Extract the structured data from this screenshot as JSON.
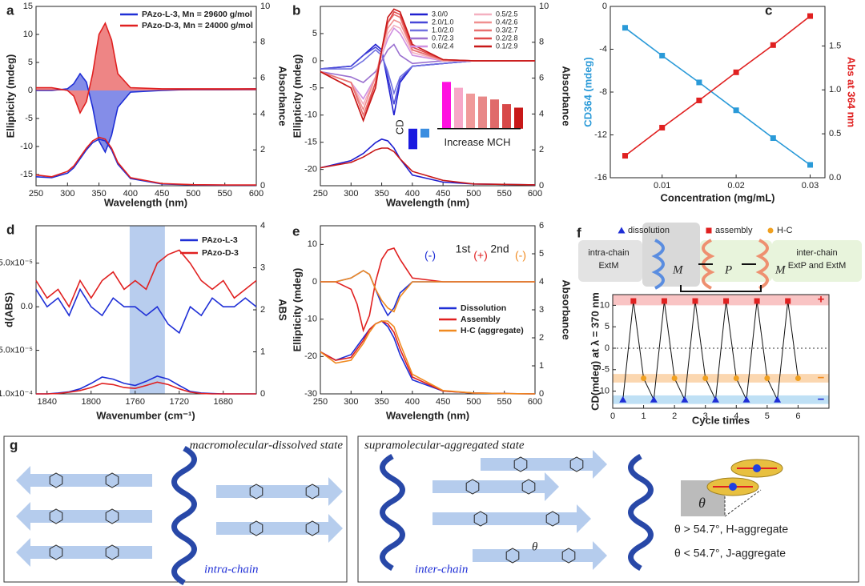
{
  "chart_data": [
    {
      "type": "line",
      "panel_label": "a",
      "xlabel": "Wavelength (nm)",
      "ylabel": "Ellipticity (mdeg)",
      "y2label": "Absorbance",
      "xlim": [
        250,
        600
      ],
      "xticks": [
        250,
        300,
        350,
        400,
        450,
        500,
        550,
        600
      ],
      "ylim": [
        -17,
        15
      ],
      "yticks": [
        -15,
        -10,
        -5,
        0,
        5,
        10,
        15
      ],
      "y2lim": [
        0,
        10
      ],
      "y2ticks": [
        0,
        2,
        4,
        6,
        8,
        10
      ],
      "x": [
        250,
        275,
        300,
        310,
        320,
        330,
        340,
        350,
        360,
        370,
        380,
        400,
        450,
        500,
        550,
        600
      ],
      "series": [
        {
          "name": "PAzo-L-3, Mn = 29600 g/mol",
          "color": "#1f2fd6",
          "fill": true,
          "values": [
            0,
            0,
            0.3,
            1.2,
            3,
            1.5,
            -3,
            -9,
            -11,
            -8,
            -3,
            -0.3,
            0,
            0.2,
            0.2,
            0.3
          ]
        },
        {
          "name": "PAzo-D-3, Mn = 24000 g/mol",
          "color": "#e02020",
          "fill": true,
          "values": [
            0.5,
            0.5,
            0,
            -1,
            -4,
            -2,
            3,
            10,
            12,
            9,
            3,
            0.5,
            0.3,
            0.3,
            0.3,
            0.3
          ]
        },
        {
          "color": "#1f2fd6",
          "axis": "y2",
          "values": [
            0.5,
            0.45,
            0.7,
            1,
            1.5,
            2,
            2.4,
            2.6,
            2.5,
            2,
            1.2,
            0.4,
            0.1,
            0.05,
            0.03,
            0.03
          ]
        },
        {
          "color": "#e02020",
          "axis": "y2",
          "values": [
            0.6,
            0.5,
            0.8,
            1.1,
            1.6,
            2.1,
            2.5,
            2.7,
            2.6,
            2.1,
            1.3,
            0.45,
            0.12,
            0.06,
            0.04,
            0.04
          ]
        }
      ]
    },
    {
      "type": "line",
      "panel_label": "b",
      "xlabel": "Wavelength (nm)",
      "ylabel": "Ellipticity (mdeg)",
      "y2label": "Absorbance",
      "xlim": [
        250,
        600
      ],
      "xticks": [
        250,
        300,
        350,
        400,
        450,
        500,
        550,
        600
      ],
      "ylim": [
        -23,
        10
      ],
      "yticks": [
        -20,
        -15,
        -10,
        -5,
        0,
        5
      ],
      "y2lim": [
        0,
        10
      ],
      "y2ticks": [
        0,
        2,
        4,
        6,
        8,
        10
      ],
      "x": [
        250,
        300,
        320,
        340,
        350,
        360,
        370,
        380,
        400,
        450,
        500,
        600
      ],
      "series": [
        {
          "name": "3.0/0",
          "color": "#2020d0",
          "values": [
            -1.5,
            -1,
            1,
            3,
            2,
            -4,
            -10,
            -4,
            -1,
            -0.5,
            0,
            0
          ]
        },
        {
          "name": "2.0/1.0",
          "color": "#4848d8",
          "values": [
            -1.5,
            -1,
            1,
            2.5,
            1.5,
            -3,
            -8,
            -3.5,
            -1,
            -0.5,
            0,
            0
          ]
        },
        {
          "name": "1.0/2.0",
          "color": "#7070e0",
          "values": [
            -1.5,
            -1.5,
            0,
            2,
            1,
            -2,
            -6,
            -3,
            -1,
            -0.5,
            0,
            0
          ]
        },
        {
          "name": "0.7/2.3",
          "color": "#9a70d0",
          "values": [
            -2,
            -3,
            -4,
            -2,
            0,
            2,
            3,
            1,
            -0.5,
            0,
            0,
            0
          ]
        },
        {
          "name": "0.6/2.4",
          "color": "#d090e0",
          "values": [
            -2,
            -4,
            -7,
            -3,
            1,
            4,
            6,
            5,
            1,
            0,
            0,
            0
          ]
        },
        {
          "name": "0.5/2.5",
          "color": "#f4b0c0",
          "values": [
            -2,
            -4,
            -8,
            -3,
            1,
            5,
            6.5,
            6,
            1.5,
            0,
            0,
            0
          ]
        },
        {
          "name": "0.4/2.6",
          "color": "#f09090",
          "values": [
            -2,
            -4,
            -9,
            -3,
            2,
            6,
            7.5,
            7,
            2,
            0,
            0,
            0
          ]
        },
        {
          "name": "0.3/2.7",
          "color": "#e87070",
          "values": [
            -2,
            -4,
            -10,
            -4,
            2,
            7,
            8.5,
            8,
            2,
            0.2,
            0,
            0
          ]
        },
        {
          "name": "0.2/2.8",
          "color": "#e04848",
          "values": [
            -2,
            -5,
            -11,
            -4,
            2,
            7,
            9,
            8.5,
            2.5,
            0.2,
            0,
            0
          ]
        },
        {
          "name": "0.1/2.9",
          "color": "#c81818",
          "values": [
            -2,
            -5,
            -11,
            -5,
            2,
            8,
            9.5,
            9,
            3,
            0.2,
            0,
            0
          ]
        },
        {
          "color": "#2020d0",
          "axis": "y2",
          "values": [
            1.0,
            1.4,
            1.8,
            2.4,
            2.6,
            2.5,
            2.1,
            1.5,
            0.6,
            0.2,
            0.1,
            0.05
          ]
        },
        {
          "color": "#c81818",
          "axis": "y2",
          "values": [
            1.0,
            1.3,
            1.6,
            2.0,
            2.1,
            2.1,
            1.9,
            1.5,
            0.8,
            0.3,
            0.1,
            0.05
          ]
        }
      ],
      "inset": {
        "cd_label": "CD",
        "mch_label": "Increase MCH",
        "ylim": [
          -4,
          9
        ],
        "values": [
          -3.5,
          -1.5,
          8,
          7,
          6,
          5.5,
          5,
          4.2,
          3.6
        ],
        "colors": [
          "#1a1ae0",
          "#3a8de0",
          "#ff10e0",
          "#f7a8c8",
          "#f09a9a",
          "#e88888",
          "#e06a6a",
          "#d84848",
          "#c81818"
        ]
      }
    },
    {
      "type": "line",
      "panel_label": "c",
      "marker": "square",
      "xlabel": "Concentration (mg/mL)",
      "ylabel": "CD364 (mdeg)",
      "y2label": "Abs at 364 nm",
      "ylabel_color": "#2a9ad8",
      "y2label_color": "#e02020",
      "xlim": [
        0.003,
        0.032
      ],
      "xticks": [
        0.01,
        0.02,
        0.03
      ],
      "ylim": [
        -16,
        0
      ],
      "yticks": [
        -16,
        -12,
        -8,
        -4,
        0
      ],
      "y2lim": [
        0,
        1.95
      ],
      "y2ticks": [
        {
          "value": 0,
          "label": "0.0"
        },
        0.5,
        {
          "value": 1,
          "label": "1.0"
        },
        1.5
      ],
      "x": [
        0.005,
        0.01,
        0.015,
        0.02,
        0.025,
        0.03
      ],
      "series": [
        {
          "color": "#2a9ad8",
          "values": [
            -2,
            -4.6,
            -7.1,
            -9.7,
            -12.3,
            -14.8
          ]
        },
        {
          "color": "#e02020",
          "axis": "y2",
          "values": [
            0.25,
            0.57,
            0.88,
            1.2,
            1.51,
            1.84
          ]
        }
      ]
    },
    {
      "type": "line",
      "panel_label": "d",
      "xlabel": "Wavenumber (cm⁻¹)",
      "ylabel": "d(ABS)",
      "y2label": "ABS",
      "xlim": [
        1850,
        1650
      ],
      "xticks": [
        1840,
        1800,
        1760,
        1720,
        1680
      ],
      "ylim": [
        -0.0001,
        9.3e-05
      ],
      "yticks": [
        {
          "value": -0.0001,
          "label": "-1.0x10⁻⁴"
        },
        {
          "value": -5e-05,
          "label": "-5.0x10⁻⁵"
        },
        {
          "value": 0,
          "label": "0.0"
        },
        {
          "value": 5e-05,
          "label": "5.0x10⁻⁵"
        }
      ],
      "y2lim": [
        0,
        4
      ],
      "y2ticks": [
        0,
        1,
        2,
        3,
        4
      ],
      "highlight": [
        1765,
        1733
      ],
      "x": [
        1850,
        1840,
        1830,
        1820,
        1810,
        1800,
        1790,
        1780,
        1770,
        1760,
        1750,
        1740,
        1730,
        1720,
        1710,
        1700,
        1690,
        1680,
        1670,
        1660,
        1650
      ],
      "series": [
        {
          "name": "PAzo-L-3",
          "color": "#1f2fd6",
          "values": [
            2e-05,
            0,
            1e-05,
            -1e-05,
            2e-05,
            0,
            -1e-05,
            1e-05,
            0,
            0,
            -1e-05,
            0,
            -2e-05,
            -3e-05,
            0,
            -1e-05,
            1e-05,
            0,
            0,
            1e-05,
            0
          ]
        },
        {
          "name": "PAzo-D-3",
          "color": "#e02020",
          "values": [
            3e-05,
            1e-05,
            2e-05,
            0,
            3e-05,
            1e-05,
            3e-05,
            4e-05,
            2e-05,
            3e-05,
            2e-05,
            5e-05,
            6e-05,
            6.5e-05,
            5e-05,
            3e-05,
            2e-05,
            3e-05,
            1e-05,
            2e-05,
            3e-05
          ]
        },
        {
          "color": "#1f2fd6",
          "axis": "y2",
          "values": [
            0,
            0,
            0.02,
            0.05,
            0.12,
            0.25,
            0.4,
            0.35,
            0.25,
            0.2,
            0.3,
            0.42,
            0.35,
            0.2,
            0.06,
            0.02,
            0.01,
            0,
            0,
            0,
            0
          ]
        },
        {
          "color": "#e02020",
          "axis": "y2",
          "values": [
            0,
            0,
            0.01,
            0.04,
            0.08,
            0.15,
            0.25,
            0.22,
            0.15,
            0.13,
            0.2,
            0.28,
            0.22,
            0.12,
            0.04,
            0.01,
            0,
            0,
            0,
            0,
            0
          ]
        }
      ]
    },
    {
      "type": "line",
      "panel_label": "e",
      "xlabel": "Wavelength (nm)",
      "ylabel": "Ellipticity (mdeg)",
      "y2label": "Absorbance",
      "xlim": [
        250,
        600
      ],
      "xticks": [
        250,
        300,
        350,
        400,
        450,
        500,
        550,
        600
      ],
      "ylim": [
        -30,
        15
      ],
      "yticks": [
        -30,
        -20,
        -10,
        0,
        10
      ],
      "y2lim": [
        0,
        6
      ],
      "y2ticks": [
        0,
        1,
        2,
        3,
        4,
        5,
        6
      ],
      "x": [
        250,
        275,
        300,
        310,
        320,
        330,
        340,
        350,
        360,
        370,
        380,
        400,
        450,
        500,
        550,
        600
      ],
      "annotations": [
        {
          "text": "(-)",
          "color": "#1f2fd6"
        },
        {
          "text": "1st",
          "color": "#222"
        },
        {
          "text": "(+)",
          "color": "#e02020"
        },
        {
          "text": "2nd",
          "color": "#222"
        },
        {
          "text": "(-)",
          "color": "#f08a20"
        }
      ],
      "series": [
        {
          "name": "Dissolution",
          "color": "#1f2fd6",
          "values": [
            0,
            0,
            1,
            2,
            3,
            2,
            -2,
            -6,
            -9,
            -7,
            -3,
            0,
            0,
            0,
            0,
            0
          ]
        },
        {
          "name": "Assembly",
          "color": "#e02020",
          "values": [
            0,
            0,
            -2,
            -6,
            -13,
            -9,
            0,
            6,
            8.5,
            9,
            6,
            1,
            0,
            0,
            0,
            0
          ]
        },
        {
          "name": "H-C (aggregate)",
          "color": "#f08a20",
          "values": [
            0,
            0,
            1,
            2,
            3,
            2,
            -2,
            -5,
            -7,
            -8,
            -4,
            0,
            0,
            0,
            0,
            0
          ]
        },
        {
          "color": "#1f2fd6",
          "axis": "y2",
          "values": [
            1.5,
            1.2,
            1.4,
            1.7,
            2.0,
            2.3,
            2.5,
            2.6,
            2.4,
            2.0,
            1.4,
            0.5,
            0.1,
            0.03,
            0.01,
            0
          ]
        },
        {
          "color": "#e02020",
          "axis": "y2",
          "values": [
            1.5,
            1.2,
            1.3,
            1.6,
            1.9,
            2.3,
            2.5,
            2.6,
            2.5,
            2.2,
            1.6,
            0.6,
            0.1,
            0.03,
            0.01,
            0
          ]
        },
        {
          "color": "#f08a20",
          "axis": "y2",
          "values": [
            1.5,
            1.1,
            1.2,
            1.5,
            1.8,
            2.2,
            2.5,
            2.6,
            2.6,
            2.4,
            1.8,
            0.7,
            0.12,
            0.03,
            0.01,
            0
          ]
        }
      ]
    },
    {
      "type": "cycle",
      "panel_label": "f",
      "xlabel": "Cycle times",
      "ylabel": "CD(mdeg) at λ = 370 nm",
      "xlim": [
        0,
        7
      ],
      "xticks": [
        0,
        1,
        2,
        3,
        4,
        5,
        6
      ],
      "ylim": [
        -14,
        12.5
      ],
      "yticks": [
        -10,
        -5,
        0,
        5,
        10
      ],
      "bands": [
        {
          "range": [
            10,
            12.5
          ],
          "color": "#f9c4c4",
          "label": "+",
          "label_color": "#e02020"
        },
        {
          "range": [
            -8,
            -6
          ],
          "color": "#fbd7b0",
          "label": "−",
          "label_color": "#f08a20"
        },
        {
          "range": [
            -13,
            -11
          ],
          "color": "#bfe0f5",
          "label": "−",
          "label_color": "#1f2fd6"
        }
      ],
      "series": [
        {
          "name": "dissolution",
          "color": "#1f2fd6",
          "marker": "triangle",
          "x": [
            0.33,
            1.33,
            2.33,
            3.33,
            4.33,
            5.33
          ],
          "values": [
            -12,
            -12,
            -12,
            -12,
            -12,
            -12
          ]
        },
        {
          "name": "assembly",
          "color": "#e02020",
          "marker": "square",
          "x": [
            0.67,
            1.67,
            2.67,
            3.67,
            4.67,
            5.67
          ],
          "values": [
            11,
            11,
            11,
            11,
            11,
            11
          ]
        },
        {
          "name": "H-C",
          "color": "#f0a020",
          "marker": "circle",
          "x": [
            1.0,
            2.0,
            3.0,
            4.0,
            5.0,
            6.0
          ],
          "values": [
            -7,
            -7,
            -7,
            -7,
            -7,
            -7
          ]
        }
      ]
    }
  ],
  "schematic_f": {
    "left1": "intra-chain",
    "left2": "ExtM",
    "m1": "M",
    "p": "P",
    "m2": "M",
    "right1": "inter-chain",
    "right2": "ExtP and ExtM"
  },
  "schematic_g": {
    "panel_label": "g",
    "left_title": "macromolecular-dissolved state",
    "left_chain": "intra-chain",
    "right_title": "supramolecular-aggregated state",
    "right_chain": "inter-chain",
    "theta_mol": "θ",
    "theta_box": "θ",
    "h_rule": "θ > 54.7°, H-aggregate",
    "j_rule": "θ < 54.7°, J-aggregate"
  }
}
